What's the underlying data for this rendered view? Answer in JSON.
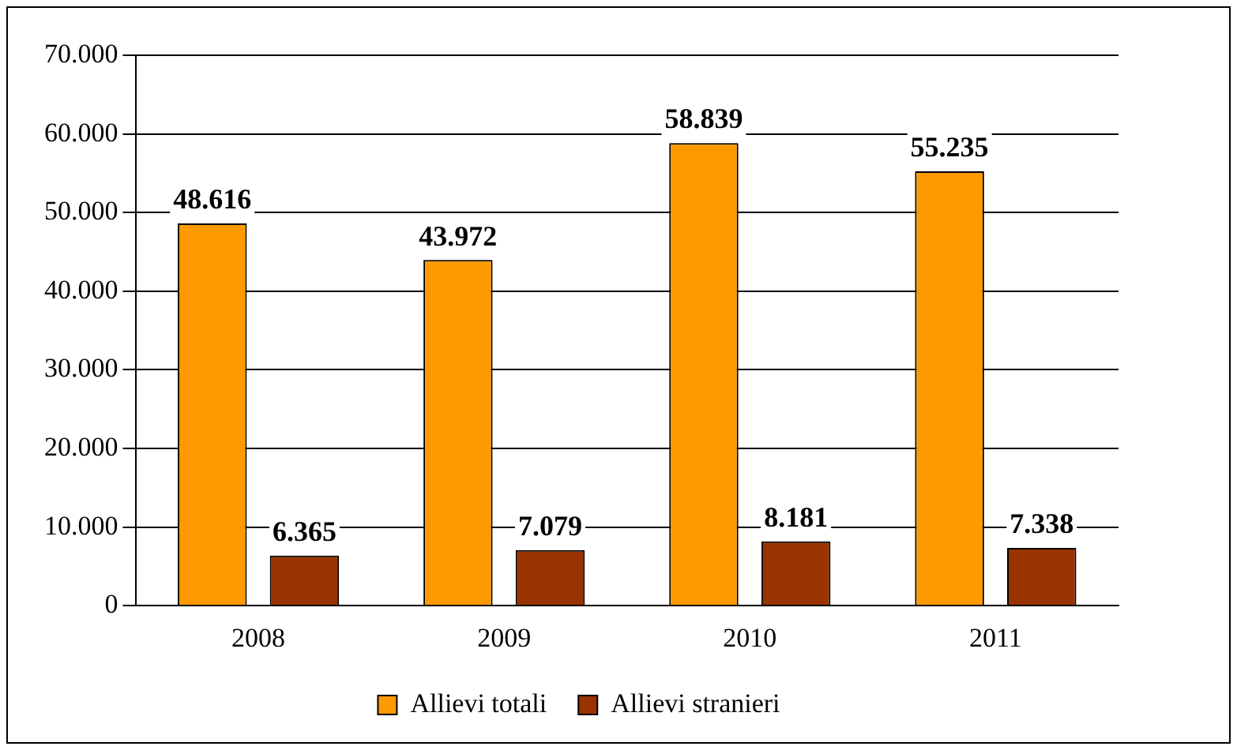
{
  "chart_data": {
    "type": "bar",
    "categories": [
      "2008",
      "2009",
      "2010",
      "2011"
    ],
    "series": [
      {
        "name": "Allievi totali",
        "color": "#ff9900",
        "values": [
          48616,
          43972,
          58839,
          55235
        ],
        "value_labels": [
          "48.616",
          "43.972",
          "58.839",
          "55.235"
        ]
      },
      {
        "name": "Allievi stranieri",
        "color": "#993300",
        "values": [
          6365,
          7079,
          8181,
          7338
        ],
        "value_labels": [
          "6.365",
          "7.079",
          "8.181",
          "7.338"
        ]
      }
    ],
    "ylim": [
      0,
      70000
    ],
    "yticks": [
      0,
      {
        "value": 10000,
        "label": "10.000"
      },
      {
        "value": 20000,
        "label": "20.000"
      },
      {
        "value": 30000,
        "label": "30.000"
      },
      {
        "value": 40000,
        "label": "40.000"
      },
      {
        "value": 50000,
        "label": "50.000"
      },
      {
        "value": 60000,
        "label": "60.000"
      },
      {
        "value": 70000,
        "label": "70.000"
      }
    ],
    "grid": "y",
    "legend": "bottom"
  }
}
